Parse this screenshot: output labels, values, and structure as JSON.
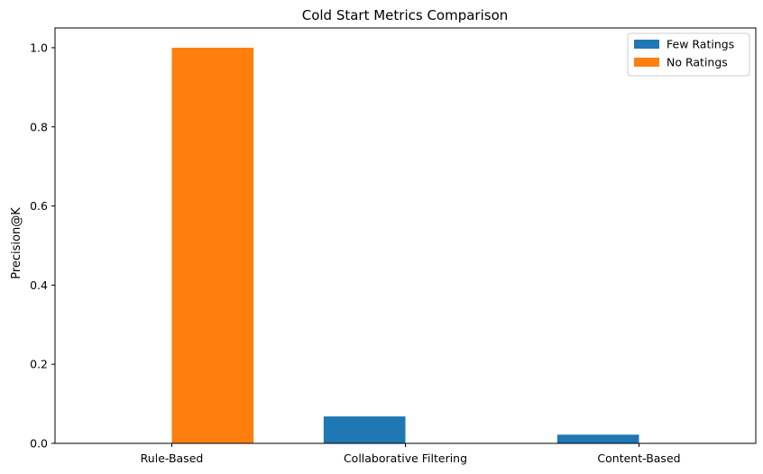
{
  "chart_data": {
    "type": "bar",
    "title": "Cold Start Metrics Comparison",
    "xlabel": "",
    "ylabel": "Precision@K",
    "categories": [
      "Rule-Based",
      "Collaborative Filtering",
      "Content-Based"
    ],
    "series": [
      {
        "name": "Few Ratings",
        "color": "#1f77b4",
        "values": [
          0.0,
          0.068,
          0.022
        ]
      },
      {
        "name": "No Ratings",
        "color": "#ff7f0e",
        "values": [
          1.0,
          0.0,
          0.0
        ]
      }
    ],
    "ylim": [
      0,
      1.05
    ],
    "yticks": [
      "0.0",
      "0.2",
      "0.4",
      "0.6",
      "0.8",
      "1.0"
    ],
    "grid": false,
    "legend_position": "top-right"
  }
}
